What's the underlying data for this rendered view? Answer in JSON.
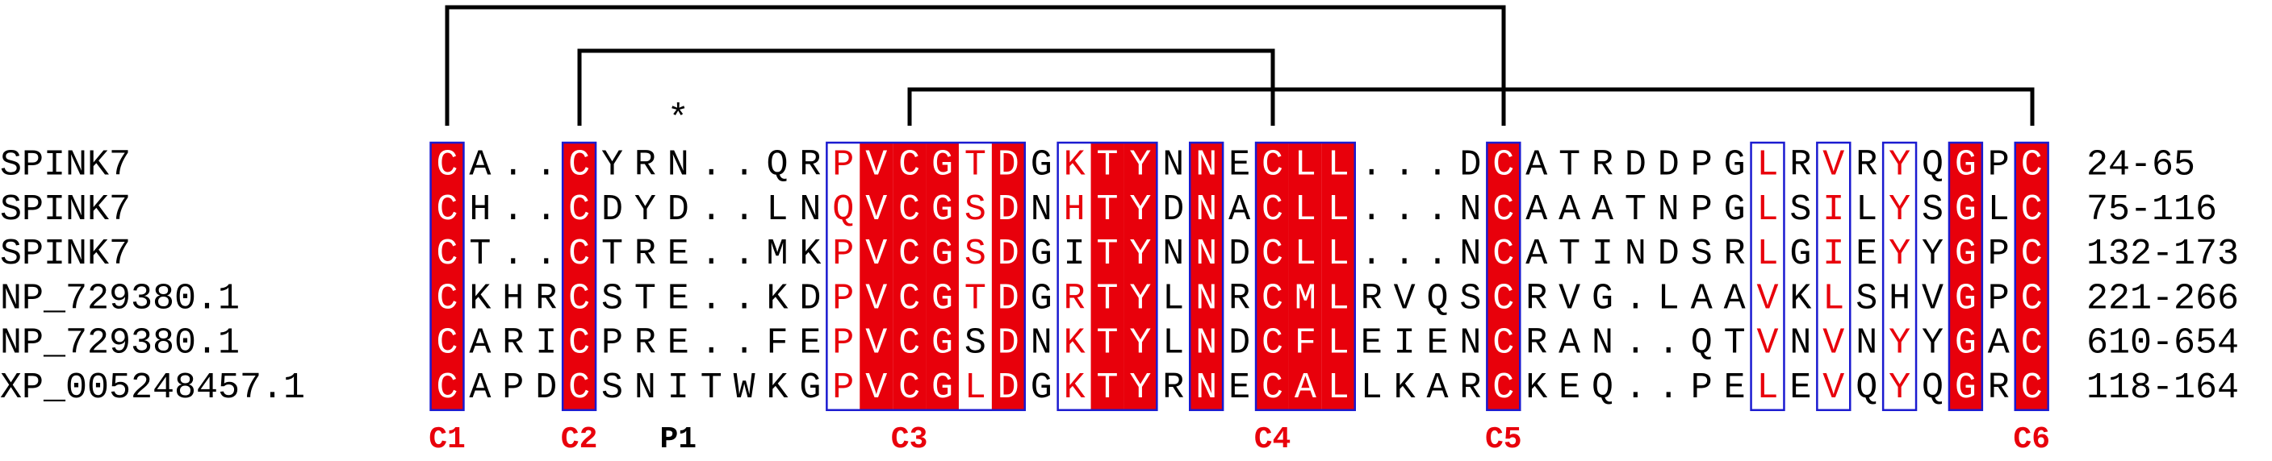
{
  "rows": [
    {
      "name": "SPINK7",
      "sequence": "CA..CYRN..QRPVCGTDGKTYNNECLL...DCATRDDPGLRVRYQGPC",
      "range": "24-65"
    },
    {
      "name": "SPINK7",
      "sequence": "CH..CDYD..LNQVCGSDNHTYDNACLL...NCAAATNPGLSILYSGLC",
      "range": "75-116"
    },
    {
      "name": "SPINK7",
      "sequence": "CT..CTRE..MKPVCGSDGITYNNDCLL...NCATINDSRLGIEYYGPC",
      "range": "132-173"
    },
    {
      "name": "NP_729380.1",
      "sequence": "CKHRCSTE..KDPVCGTDGRTYLNRCMLRVQSCRVG.LAAVKLSHVGPC",
      "range": "221-266"
    },
    {
      "name": "NP_729380.1",
      "sequence": "CARICPRE..FEPVCGSDNKTYLNDCFLEIENCRAN..QTVNVNYYGAC",
      "range": "610-654"
    },
    {
      "name": "XP_005248457.1",
      "sequence": "CAPDCSNITWKGPVCGLDGKTYRNECALLKARCKEQ..PELEVQYQGRC",
      "range": "118-164"
    }
  ],
  "star": "*",
  "labels": [
    "C1",
    "C2",
    "P1",
    "C3",
    "C4",
    "C5",
    "C6"
  ]
}
